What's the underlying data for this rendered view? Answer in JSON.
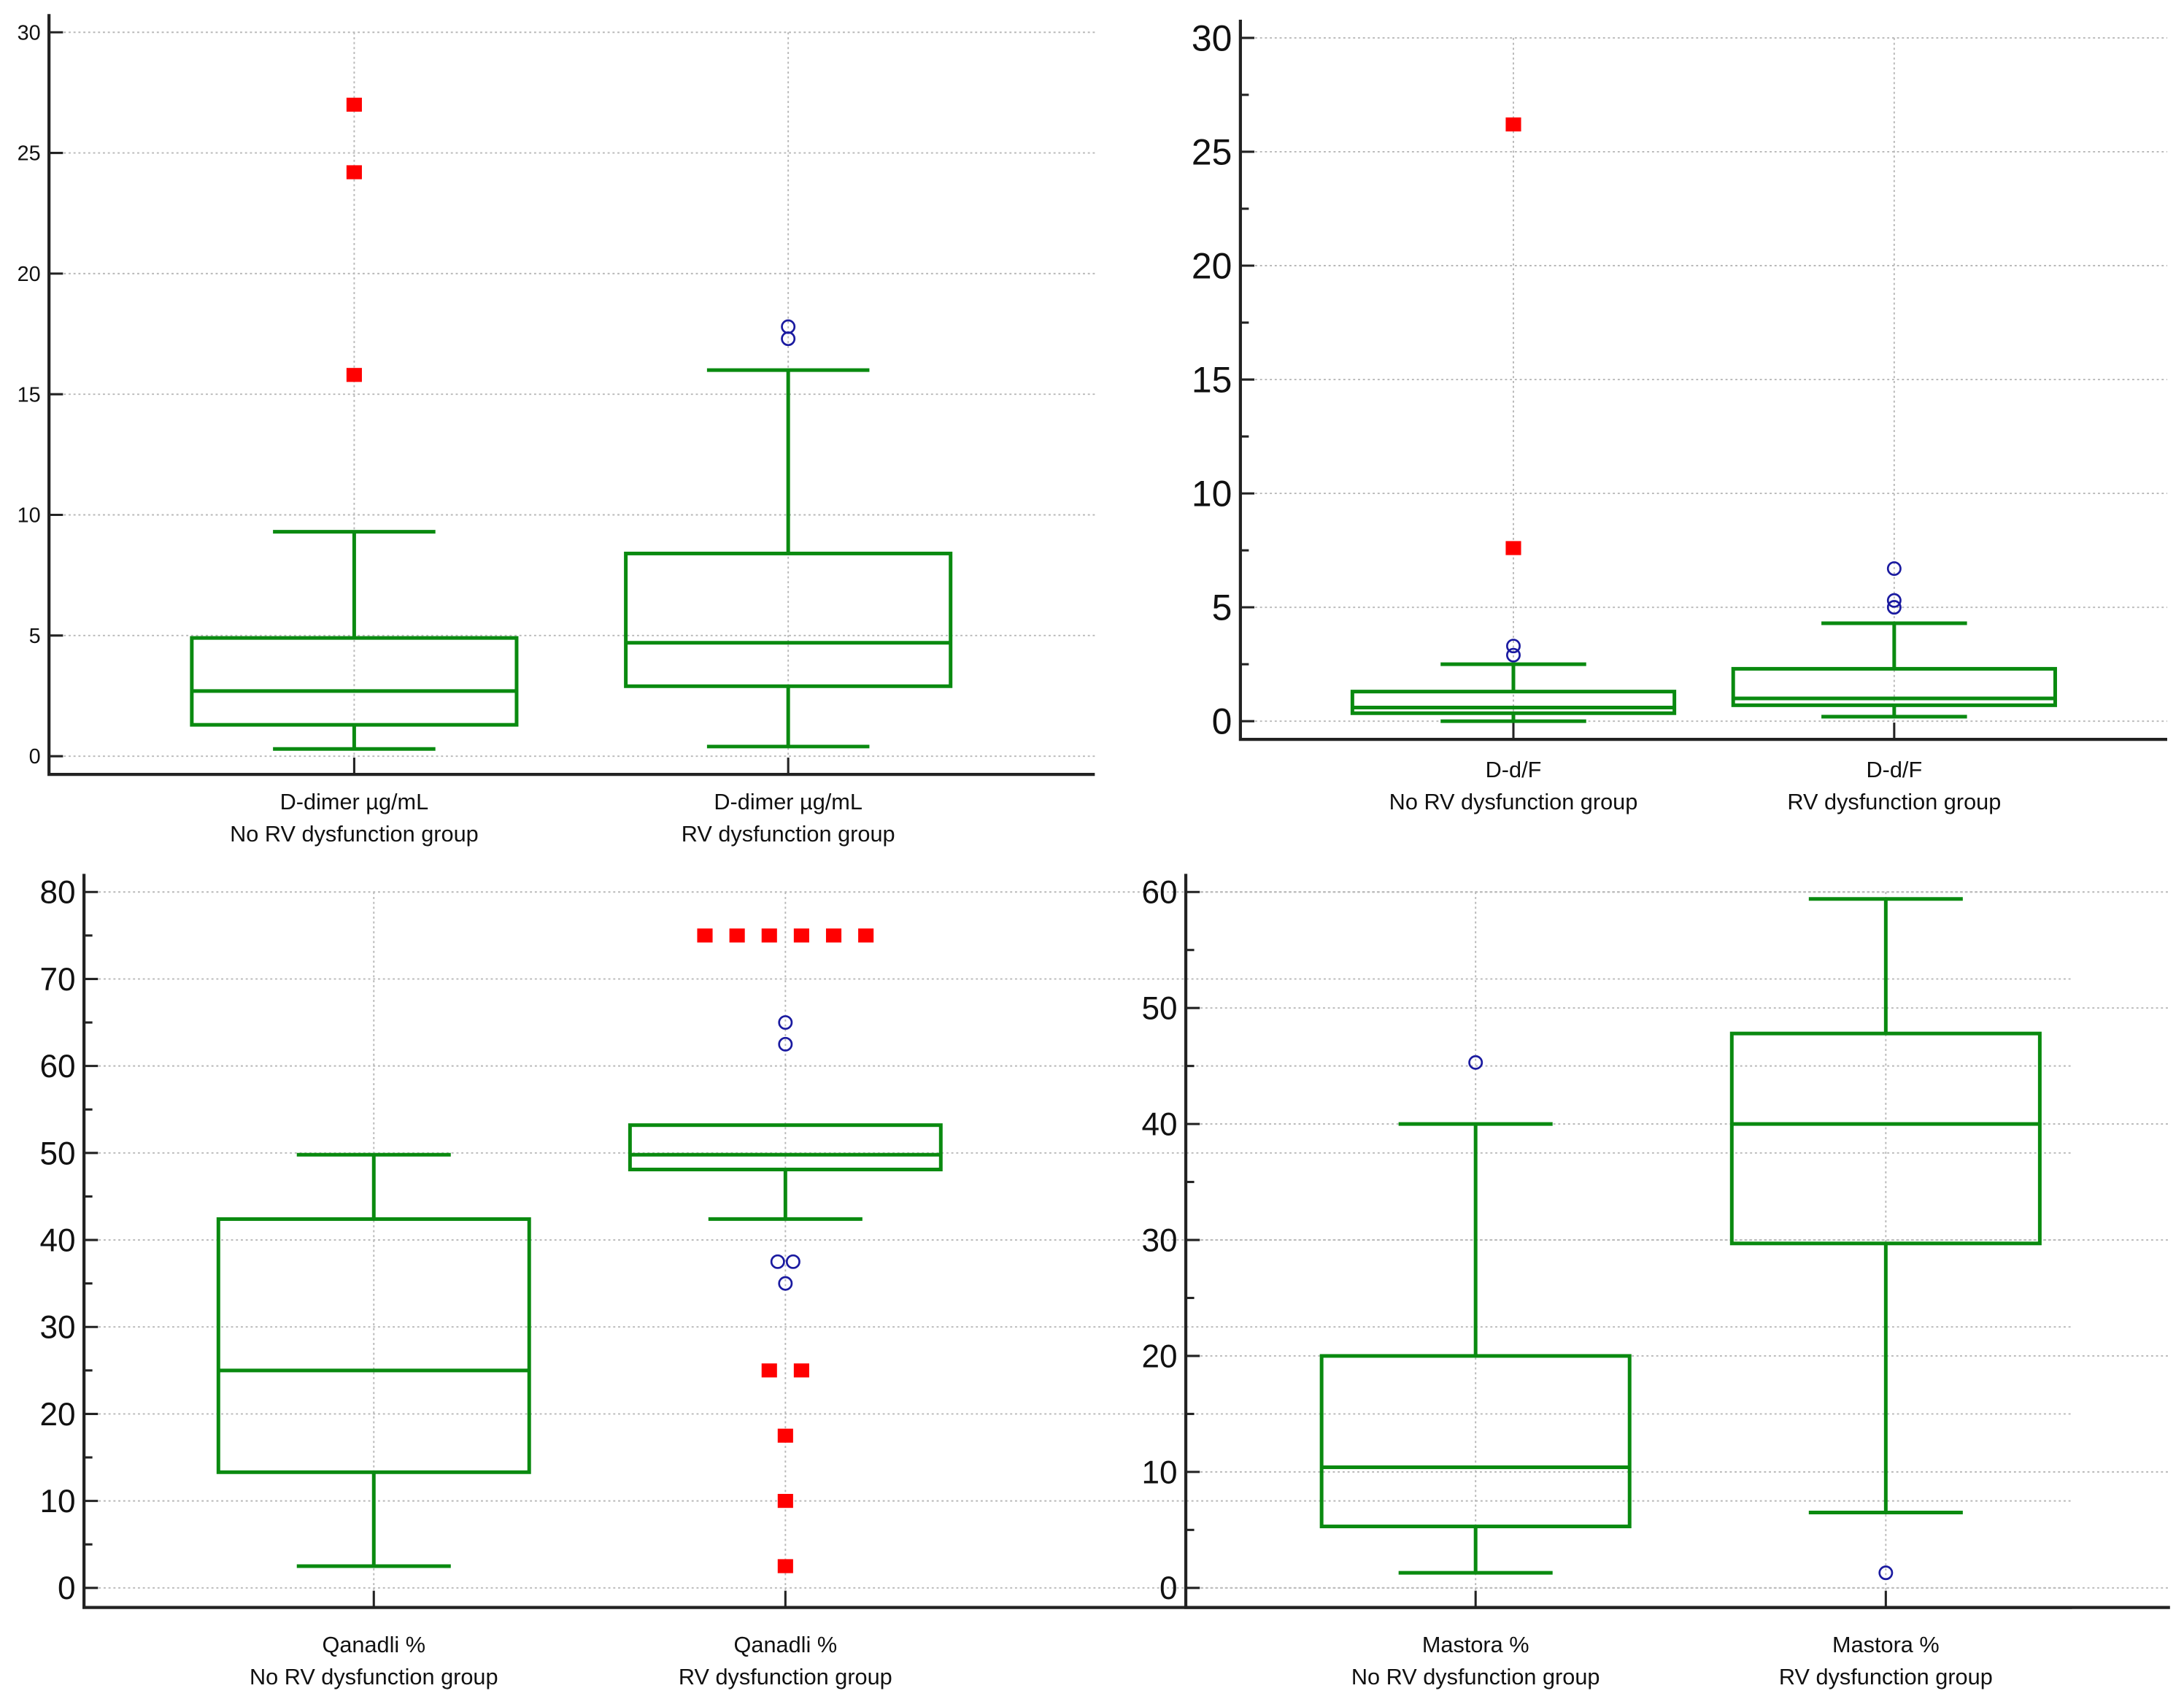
{
  "chart_data": [
    {
      "type": "box",
      "ylim": [
        0,
        30
      ],
      "yticks": [
        0,
        5,
        10,
        15,
        20,
        25,
        30
      ],
      "grid": true,
      "groups": [
        {
          "label1": "D-dimer µg/mL",
          "label2": "No RV dysfunction group",
          "min": 0.3,
          "q1": 1.3,
          "median": 2.7,
          "q3": 4.9,
          "max": 9.3,
          "outliers": [
            {
              "value": 15.8,
              "type": "far"
            },
            {
              "value": 24.2,
              "type": "far"
            },
            {
              "value": 27.0,
              "type": "far"
            }
          ]
        },
        {
          "label1": "D-dimer µg/mL",
          "label2": "RV dysfunction group",
          "min": 0.4,
          "q1": 2.9,
          "median": 4.7,
          "q3": 8.4,
          "max": 16.0,
          "outliers": [
            {
              "value": 17.3,
              "type": "near"
            },
            {
              "value": 17.8,
              "type": "near"
            }
          ]
        }
      ]
    },
    {
      "type": "box",
      "ylim": [
        0,
        30
      ],
      "yticks": [
        0,
        5,
        10,
        15,
        20,
        25,
        30
      ],
      "grid": true,
      "groups": [
        {
          "label1": "D-d/F",
          "label2": "No RV dysfunction group",
          "min": 0.0,
          "q1": 0.35,
          "median": 0.6,
          "q3": 1.3,
          "max": 2.5,
          "outliers": [
            {
              "value": 2.9,
              "type": "near"
            },
            {
              "value": 3.3,
              "type": "near"
            },
            {
              "value": 7.6,
              "type": "far"
            },
            {
              "value": 26.2,
              "type": "far"
            }
          ]
        },
        {
          "label1": "D-d/F",
          "label2": "RV dysfunction group",
          "min": 0.2,
          "q1": 0.7,
          "median": 1.0,
          "q3": 2.3,
          "max": 4.3,
          "outliers": [
            {
              "value": 5.0,
              "type": "near"
            },
            {
              "value": 5.3,
              "type": "near"
            },
            {
              "value": 6.7,
              "type": "near"
            }
          ]
        }
      ]
    },
    {
      "type": "box",
      "ylim": [
        0,
        80
      ],
      "yticks": [
        0,
        10,
        20,
        30,
        40,
        50,
        60,
        70,
        80
      ],
      "grid": true,
      "groups": [
        {
          "label1": "Qanadli %",
          "label2": "No RV dysfunction group",
          "min": 2.5,
          "q1": 13.3,
          "median": 25.0,
          "q3": 42.4,
          "max": 49.8,
          "outliers": []
        },
        {
          "label1": "Qanadli %",
          "label2": "RV dysfunction group",
          "min": 42.4,
          "q1": 48.1,
          "median": 49.8,
          "q3": 53.2,
          "max": 53.2,
          "outliers": [
            {
              "value": 75,
              "type": "far"
            },
            {
              "value": 75,
              "type": "far"
            },
            {
              "value": 75,
              "type": "far"
            },
            {
              "value": 75,
              "type": "far"
            },
            {
              "value": 75,
              "type": "far"
            },
            {
              "value": 75,
              "type": "far"
            },
            {
              "value": 65,
              "type": "near"
            },
            {
              "value": 62.5,
              "type": "near"
            },
            {
              "value": 37.5,
              "type": "near"
            },
            {
              "value": 37.5,
              "type": "near"
            },
            {
              "value": 35,
              "type": "near"
            },
            {
              "value": 25,
              "type": "far"
            },
            {
              "value": 25,
              "type": "far"
            },
            {
              "value": 17.5,
              "type": "far"
            },
            {
              "value": 10,
              "type": "far"
            },
            {
              "value": 2.5,
              "type": "far"
            }
          ]
        }
      ]
    },
    {
      "type": "box",
      "ylim": [
        0,
        60
      ],
      "yticks": [
        0,
        10,
        20,
        30,
        40,
        50,
        60
      ],
      "grid": true,
      "groups": [
        {
          "label1": "Mastora %",
          "label2": "No RV dysfunction group",
          "min": 1.3,
          "q1": 5.3,
          "median": 10.4,
          "q3": 20.0,
          "max": 40.0,
          "outliers": [
            {
              "value": 45.3,
              "type": "near"
            }
          ]
        },
        {
          "label1": "Mastora %",
          "label2": "RV dysfunction group",
          "min": 6.5,
          "q1": 29.7,
          "median": 40.0,
          "q3": 47.8,
          "max": 59.4,
          "outliers": [
            {
              "value": 1.3,
              "type": "near"
            }
          ]
        }
      ]
    }
  ],
  "colors": {
    "box": "#0a8a10",
    "far_outlier": "#ff0000",
    "near_outlier": "#1a1aa0"
  }
}
